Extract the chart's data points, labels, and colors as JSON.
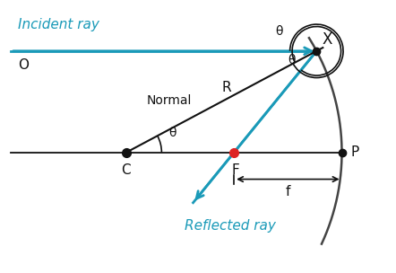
{
  "bg_color": "#ffffff",
  "mirror_color": "#444444",
  "ray_color": "#1a9ab8",
  "normal_line_color": "#111111",
  "axis_color": "#111111",
  "dot_color_black": "#111111",
  "dot_color_red": "#dd2222",
  "text_color": "#111111",
  "blue_text_color": "#1a9ab8",
  "theta_symbol": "θ",
  "label_R": "R",
  "label_Normal": "Normal",
  "label_f": "f",
  "label_C": "C",
  "label_F": "F",
  "label_P": "P",
  "label_X": "X",
  "label_O": "O",
  "label_incident": "Incident ray",
  "label_reflected": "Reflected ray"
}
